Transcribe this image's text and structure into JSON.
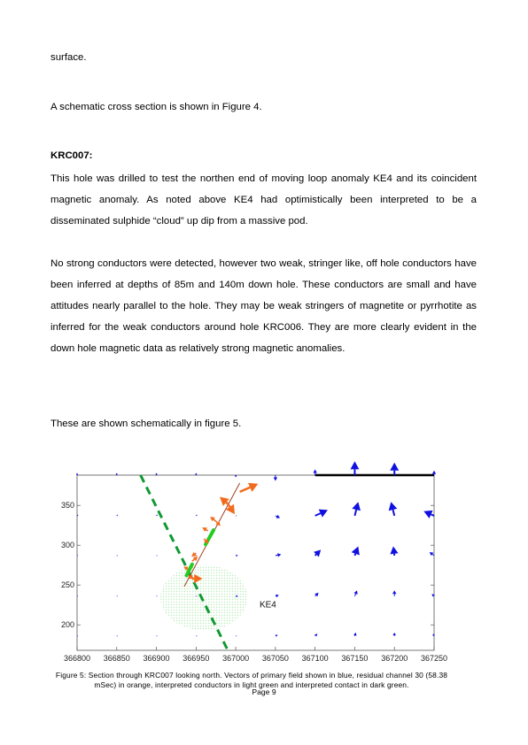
{
  "text": {
    "p0": "surface.",
    "p1": "A schematic cross section is shown in Figure 4.",
    "heading": "KRC007:",
    "p2": "This hole was drilled to test the northen end of moving loop anomaly KE4 and its coincident magnetic anomaly. As noted above KE4 had optimistically been interpreted to be a disseminated sulphide “cloud” up dip from a massive pod.",
    "p3": "No strong conductors were detected, however two weak, stringer like, off hole conductors have been inferred at depths of 85m and 140m down hole. These conductors are small and have attitudes nearly parallel to the hole. They may be weak stringers of magnetite or pyrrhotite as inferred for the weak conductors around hole KRC006. They are more clearly evident in the down hole magnetic data as relatively strong magnetic anomalies.",
    "p4": "These are shown schematically in figure 5."
  },
  "figure": {
    "caption": "Figure 5: Section through KRC007 looking north. Vectors of primary field shown in blue, residual channel 30 (58.38 mSec) in orange, interpreted conductors in light green and interpreted contact in dark green.",
    "page": "Page 9"
  },
  "chart_data": {
    "type": "scatter",
    "title": "",
    "xlabel": "",
    "ylabel": "",
    "xlim": [
      366800,
      367250
    ],
    "ylim": [
      168,
      388
    ],
    "x_ticks": [
      "366800",
      "366850",
      "366900",
      "366950",
      "367000",
      "367050",
      "367100",
      "367150",
      "367200",
      "367250"
    ],
    "y_ticks": [
      "200",
      "250",
      "300",
      "350"
    ],
    "annotation": "KE4",
    "colors": {
      "primary": "#1010e0",
      "residual": "#f26b1d",
      "conductor": "#22cc22",
      "contact": "#119933",
      "hole": "#a04020",
      "ke4_fill": "#b8ecb8"
    },
    "primary_field_vectors": [
      {
        "x": 366800,
        "y": 388,
        "dx": 0,
        "dy": 2
      },
      {
        "x": 366850,
        "y": 388,
        "dx": 0,
        "dy": 2
      },
      {
        "x": 366900,
        "y": 388,
        "dx": 0,
        "dy": 2
      },
      {
        "x": 366950,
        "y": 388,
        "dx": 0,
        "dy": 2
      },
      {
        "x": 367000,
        "y": 388,
        "dx": 0,
        "dy": -2
      },
      {
        "x": 367050,
        "y": 388,
        "dx": 0,
        "dy": -5
      },
      {
        "x": 367100,
        "y": 388,
        "dx": 0,
        "dy": 5
      },
      {
        "x": 367150,
        "y": 388,
        "dx": 0,
        "dy": 12
      },
      {
        "x": 367200,
        "y": 388,
        "dx": 0,
        "dy": 11
      },
      {
        "x": 367250,
        "y": 388,
        "dx": 0,
        "dy": 4
      },
      {
        "x": 366800,
        "y": 337,
        "dx": 1,
        "dy": 1
      },
      {
        "x": 366850,
        "y": 337,
        "dx": 1,
        "dy": 1
      },
      {
        "x": 366900,
        "y": 337,
        "dx": 1,
        "dy": 1
      },
      {
        "x": 366950,
        "y": 337,
        "dx": 1,
        "dy": 1
      },
      {
        "x": 367000,
        "y": 337,
        "dx": 1,
        "dy": 0
      },
      {
        "x": 367050,
        "y": 337,
        "dx": 4,
        "dy": -2
      },
      {
        "x": 367100,
        "y": 337,
        "dx": 11,
        "dy": 5
      },
      {
        "x": 367150,
        "y": 337,
        "dx": 3,
        "dy": 12
      },
      {
        "x": 367200,
        "y": 337,
        "dx": -3,
        "dy": 12
      },
      {
        "x": 367250,
        "y": 337,
        "dx": -9,
        "dy": 4
      },
      {
        "x": 366800,
        "y": 287,
        "dx": 1,
        "dy": 0
      },
      {
        "x": 366850,
        "y": 287,
        "dx": 1,
        "dy": 0
      },
      {
        "x": 366900,
        "y": 287,
        "dx": 1,
        "dy": 0
      },
      {
        "x": 366950,
        "y": 287,
        "dx": 1,
        "dy": 0
      },
      {
        "x": 367000,
        "y": 287,
        "dx": 2,
        "dy": 0
      },
      {
        "x": 367050,
        "y": 287,
        "dx": 5,
        "dy": 1
      },
      {
        "x": 367100,
        "y": 287,
        "dx": 5,
        "dy": 5
      },
      {
        "x": 367150,
        "y": 287,
        "dx": 3,
        "dy": 8
      },
      {
        "x": 367200,
        "y": 287,
        "dx": -1,
        "dy": 8
      },
      {
        "x": 367250,
        "y": 287,
        "dx": -4,
        "dy": 3
      },
      {
        "x": 366800,
        "y": 236,
        "dx": 1,
        "dy": 0
      },
      {
        "x": 366850,
        "y": 236,
        "dx": 1,
        "dy": 0
      },
      {
        "x": 366900,
        "y": 236,
        "dx": 1,
        "dy": 0
      },
      {
        "x": 366950,
        "y": 236,
        "dx": 1,
        "dy": 0
      },
      {
        "x": 367000,
        "y": 236,
        "dx": 2,
        "dy": 0
      },
      {
        "x": 367050,
        "y": 236,
        "dx": 3,
        "dy": 1
      },
      {
        "x": 367100,
        "y": 236,
        "dx": 3,
        "dy": 3
      },
      {
        "x": 367150,
        "y": 236,
        "dx": 2,
        "dy": 5
      },
      {
        "x": 367200,
        "y": 236,
        "dx": 0,
        "dy": 5
      },
      {
        "x": 367250,
        "y": 236,
        "dx": -2,
        "dy": 2
      },
      {
        "x": 366800,
        "y": 186,
        "dx": 1,
        "dy": 0
      },
      {
        "x": 366850,
        "y": 186,
        "dx": 1,
        "dy": 0
      },
      {
        "x": 366900,
        "y": 186,
        "dx": 1,
        "dy": 0
      },
      {
        "x": 366950,
        "y": 186,
        "dx": 1,
        "dy": 0
      },
      {
        "x": 367000,
        "y": 186,
        "dx": 1,
        "dy": 0
      },
      {
        "x": 367050,
        "y": 186,
        "dx": 2,
        "dy": 1
      },
      {
        "x": 367100,
        "y": 186,
        "dx": 2,
        "dy": 2
      },
      {
        "x": 367150,
        "y": 186,
        "dx": 1,
        "dy": 3
      },
      {
        "x": 367200,
        "y": 186,
        "dx": 0,
        "dy": 3
      },
      {
        "x": 367250,
        "y": 186,
        "dx": -1,
        "dy": 2
      }
    ],
    "loop_line": [
      [
        367100,
        388
      ],
      [
        367250,
        388
      ]
    ],
    "drill_hole": [
      [
        366935,
        248
      ],
      [
        367005,
        378
      ]
    ],
    "residual_vectors": [
      {
        "x": 367005,
        "y": 367,
        "dx": 16,
        "dy": 7
      },
      {
        "x": 366990,
        "y": 352,
        "dx": -7,
        "dy": 6
      },
      {
        "x": 366990,
        "y": 352,
        "dx": 6,
        "dy": -9
      },
      {
        "x": 366975,
        "y": 330,
        "dx": -5,
        "dy": 4
      },
      {
        "x": 366975,
        "y": 330,
        "dx": 4,
        "dy": -4
      },
      {
        "x": 366965,
        "y": 318,
        "dx": -5,
        "dy": 3
      },
      {
        "x": 366960,
        "y": 308,
        "dx": 4,
        "dy": -4
      },
      {
        "x": 366950,
        "y": 290,
        "dx": -4,
        "dy": -3
      },
      {
        "x": 366945,
        "y": 280,
        "dx": 5,
        "dy": 4
      },
      {
        "x": 366940,
        "y": 270,
        "dx": -4,
        "dy": 2
      },
      {
        "x": 366940,
        "y": 262,
        "dx": 5,
        "dy": -3
      },
      {
        "x": 366945,
        "y": 258,
        "dx": 9,
        "dy": 0
      }
    ],
    "conductors": [
      {
        "x1": 366962,
        "y1": 301,
        "x2": 366972,
        "y2": 319
      },
      {
        "x1": 366938,
        "y1": 262,
        "x2": 366945,
        "y2": 276
      }
    ],
    "contact": [
      [
        366880,
        388
      ],
      [
        366990,
        168
      ]
    ],
    "ke4_zone": {
      "cx": 366960,
      "cy": 234,
      "rx": 55,
      "ry": 41
    }
  }
}
